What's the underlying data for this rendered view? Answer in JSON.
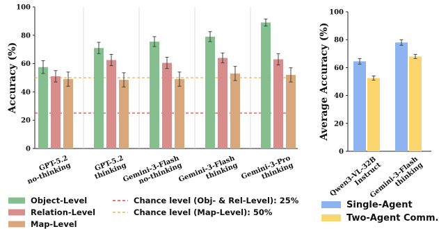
{
  "chart_data": [
    {
      "type": "bar",
      "ylabel": "Accuracy (%)",
      "ylim": [
        0,
        100
      ],
      "yticks": [
        0,
        20,
        40,
        60,
        80,
        100
      ],
      "grid": "vertical separators between groups",
      "categories": [
        [
          "GPT-5.2",
          "no-thinking"
        ],
        [
          "GPT-5.2",
          "thinking"
        ],
        [
          "Gemini-3-Flash",
          "no-thinking"
        ],
        [
          "Gemini-3-Flash",
          "thinking"
        ],
        [
          "Gemini-3-Pro",
          "thinking"
        ]
      ],
      "series": [
        {
          "name": "Object-Level",
          "color": "#86bf8f",
          "values": [
            57.5,
            71,
            75.5,
            79,
            89
          ],
          "errors": [
            4.5,
            4,
            3.5,
            3.5,
            2.5
          ]
        },
        {
          "name": "Relation-Level",
          "color": "#d98c8c",
          "values": [
            51,
            62.5,
            60.5,
            64,
            63
          ],
          "errors": [
            4,
            4,
            4,
            3.5,
            4
          ]
        },
        {
          "name": "Map-Level",
          "color": "#d8a77c",
          "values": [
            49,
            48.5,
            49,
            53,
            52
          ],
          "errors": [
            5,
            5,
            5,
            5,
            5
          ]
        }
      ],
      "reference_lines": [
        {
          "name": "Chance level (Obj- & Rel-Level): 25%",
          "value": 25,
          "color": "#e8463a",
          "style": "dashed"
        },
        {
          "name": "Chance level (Map-Level): 50%",
          "value": 50,
          "color": "#f2b348",
          "style": "dashed"
        }
      ],
      "legend_position": "bottom"
    },
    {
      "type": "bar",
      "ylabel": "Average Accuracy (%)",
      "ylim": [
        0,
        100
      ],
      "yticks": [
        0,
        20,
        40,
        60,
        80,
        100
      ],
      "categories": [
        [
          "Qwen3-VL-32B",
          "Instruct"
        ],
        [
          "Gemini-3-Flash",
          "thinking"
        ]
      ],
      "series": [
        {
          "name": "Single-Agent",
          "color": "#8db3f0",
          "values": [
            64.5,
            78
          ],
          "errors": [
            2,
            2
          ]
        },
        {
          "name": "Two-Agent Comm.",
          "color": "#fbd66e",
          "values": [
            52.5,
            68
          ],
          "errors": [
            1.5,
            1.5
          ]
        }
      ],
      "legend_position": "bottom"
    }
  ]
}
